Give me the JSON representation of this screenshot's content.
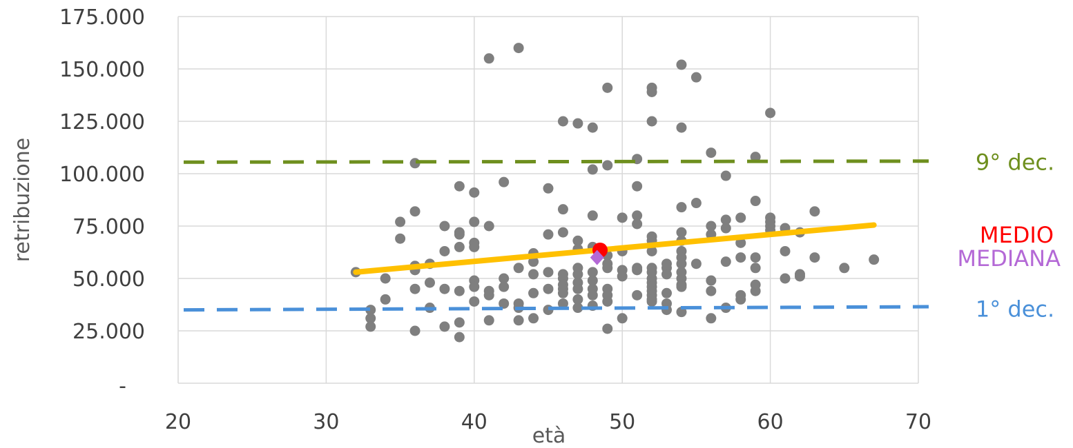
{
  "chart_data": {
    "type": "scatter",
    "xlabel": "età",
    "ylabel": "retribuzione",
    "xlim": [
      20,
      70
    ],
    "ylim": [
      0,
      175000
    ],
    "x_ticks": [
      20,
      30,
      40,
      50,
      60,
      70
    ],
    "x_tick_labels": [
      "20",
      "30",
      "40",
      "50",
      "60",
      "70"
    ],
    "y_ticks": [
      0,
      25000,
      50000,
      75000,
      100000,
      125000,
      150000,
      175000
    ],
    "y_tick_labels": [
      "-",
      "25.000",
      "50.000",
      "75.000",
      "100.000",
      "125.000",
      "150.000",
      "175.000"
    ],
    "grid": "vertical and horizontal",
    "colors": {
      "points": "#7f7f7f",
      "trend": "#ffc000",
      "decile9": "#6e8f1e",
      "decile1": "#4a90d9",
      "medio": "#ff0000",
      "mediana": "#b469d6",
      "grid": "#d9d9d9"
    },
    "points": [
      [
        32,
        53000
      ],
      [
        33,
        35000
      ],
      [
        33,
        31000
      ],
      [
        33,
        27000
      ],
      [
        34,
        50000
      ],
      [
        34,
        40000
      ],
      [
        35,
        77000
      ],
      [
        35,
        69000
      ],
      [
        36,
        105000
      ],
      [
        36,
        82000
      ],
      [
        36,
        56000
      ],
      [
        36,
        54000
      ],
      [
        36,
        45000
      ],
      [
        36,
        25000
      ],
      [
        37,
        57000
      ],
      [
        37,
        48000
      ],
      [
        37,
        36000
      ],
      [
        38,
        75000
      ],
      [
        38,
        63000
      ],
      [
        38,
        45000
      ],
      [
        38,
        27000
      ],
      [
        39,
        94000
      ],
      [
        39,
        72000
      ],
      [
        39,
        71000
      ],
      [
        39,
        65000
      ],
      [
        39,
        44000
      ],
      [
        39,
        29000
      ],
      [
        39,
        22000
      ],
      [
        40,
        91000
      ],
      [
        40,
        77000
      ],
      [
        40,
        67000
      ],
      [
        40,
        65000
      ],
      [
        40,
        49000
      ],
      [
        40,
        46000
      ],
      [
        40,
        39000
      ],
      [
        41,
        155000
      ],
      [
        41,
        75000
      ],
      [
        41,
        44000
      ],
      [
        41,
        42000
      ],
      [
        41,
        30000
      ],
      [
        42,
        96000
      ],
      [
        42,
        50000
      ],
      [
        42,
        46000
      ],
      [
        42,
        38000
      ],
      [
        43,
        160000
      ],
      [
        43,
        55000
      ],
      [
        43,
        38000
      ],
      [
        43,
        36000
      ],
      [
        43,
        30000
      ],
      [
        44,
        62000
      ],
      [
        44,
        58000
      ],
      [
        44,
        52000
      ],
      [
        44,
        43000
      ],
      [
        44,
        31000
      ],
      [
        45,
        93000
      ],
      [
        45,
        71000
      ],
      [
        45,
        53000
      ],
      [
        45,
        45000
      ],
      [
        45,
        35000
      ],
      [
        46,
        125000
      ],
      [
        46,
        83000
      ],
      [
        46,
        72000
      ],
      [
        46,
        52000
      ],
      [
        46,
        50000
      ],
      [
        46,
        47000
      ],
      [
        46,
        45000
      ],
      [
        46,
        43000
      ],
      [
        46,
        38000
      ],
      [
        47,
        124000
      ],
      [
        47,
        68000
      ],
      [
        47,
        64000
      ],
      [
        47,
        55000
      ],
      [
        47,
        52000
      ],
      [
        47,
        48000
      ],
      [
        47,
        45000
      ],
      [
        47,
        40000
      ],
      [
        47,
        36000
      ],
      [
        48,
        122000
      ],
      [
        48,
        102000
      ],
      [
        48,
        80000
      ],
      [
        48,
        65000
      ],
      [
        48,
        53000
      ],
      [
        48,
        49000
      ],
      [
        48,
        45000
      ],
      [
        48,
        42000
      ],
      [
        48,
        37000
      ],
      [
        49,
        141000
      ],
      [
        49,
        104000
      ],
      [
        49,
        61000
      ],
      [
        49,
        57000
      ],
      [
        49,
        55000
      ],
      [
        49,
        45000
      ],
      [
        49,
        42000
      ],
      [
        49,
        39000
      ],
      [
        49,
        26000
      ],
      [
        50,
        79000
      ],
      [
        50,
        63000
      ],
      [
        50,
        54000
      ],
      [
        50,
        51000
      ],
      [
        50,
        31000
      ],
      [
        51,
        107000
      ],
      [
        51,
        94000
      ],
      [
        51,
        80000
      ],
      [
        51,
        76000
      ],
      [
        51,
        55000
      ],
      [
        51,
        54000
      ],
      [
        51,
        42000
      ],
      [
        52,
        141000
      ],
      [
        52,
        139000
      ],
      [
        52,
        125000
      ],
      [
        52,
        70000
      ],
      [
        52,
        68000
      ],
      [
        52,
        63000
      ],
      [
        52,
        55000
      ],
      [
        52,
        53000
      ],
      [
        52,
        50000
      ],
      [
        52,
        48000
      ],
      [
        52,
        46000
      ],
      [
        52,
        44000
      ],
      [
        52,
        42000
      ],
      [
        52,
        40000
      ],
      [
        52,
        39000
      ],
      [
        53,
        57000
      ],
      [
        53,
        55000
      ],
      [
        53,
        52000
      ],
      [
        53,
        43000
      ],
      [
        53,
        38000
      ],
      [
        53,
        35000
      ],
      [
        54,
        152000
      ],
      [
        54,
        122000
      ],
      [
        54,
        84000
      ],
      [
        54,
        72000
      ],
      [
        54,
        68000
      ],
      [
        54,
        63000
      ],
      [
        54,
        60000
      ],
      [
        54,
        57000
      ],
      [
        54,
        53000
      ],
      [
        54,
        50000
      ],
      [
        54,
        47000
      ],
      [
        54,
        46000
      ],
      [
        54,
        34000
      ],
      [
        55,
        146000
      ],
      [
        55,
        86000
      ],
      [
        55,
        57000
      ],
      [
        56,
        110000
      ],
      [
        56,
        75000
      ],
      [
        56,
        71000
      ],
      [
        56,
        49000
      ],
      [
        56,
        44000
      ],
      [
        56,
        31000
      ],
      [
        57,
        99000
      ],
      [
        57,
        78000
      ],
      [
        57,
        74000
      ],
      [
        57,
        58000
      ],
      [
        57,
        36000
      ],
      [
        58,
        79000
      ],
      [
        58,
        67000
      ],
      [
        58,
        60000
      ],
      [
        58,
        42000
      ],
      [
        58,
        40000
      ],
      [
        59,
        108000
      ],
      [
        59,
        87000
      ],
      [
        59,
        60000
      ],
      [
        59,
        55000
      ],
      [
        59,
        47000
      ],
      [
        59,
        44000
      ],
      [
        60,
        129000
      ],
      [
        60,
        79000
      ],
      [
        60,
        77000
      ],
      [
        60,
        75000
      ],
      [
        60,
        73000
      ],
      [
        61,
        74000
      ],
      [
        61,
        63000
      ],
      [
        61,
        50000
      ],
      [
        62,
        72000
      ],
      [
        62,
        52000
      ],
      [
        62,
        51000
      ],
      [
        63,
        82000
      ],
      [
        63,
        60000
      ],
      [
        65,
        55000
      ],
      [
        67,
        59000
      ]
    ],
    "trendline": {
      "x": [
        32,
        67
      ],
      "y": [
        53000,
        75500
      ]
    },
    "reference_lines": [
      {
        "label": "9° dec.",
        "y_start": 105500,
        "y_end": 106000,
        "color": "#6e8f1e"
      },
      {
        "label": "1° dec.",
        "y_start": 35000,
        "y_end": 36500,
        "color": "#4a90d9"
      }
    ],
    "mean_point": {
      "label": "MEDIO",
      "x": 48.5,
      "y": 63500,
      "color": "#ff0000"
    },
    "median_point": {
      "label": "MEDIANA",
      "x": 48.3,
      "y": 60000,
      "color": "#b469d6"
    }
  }
}
